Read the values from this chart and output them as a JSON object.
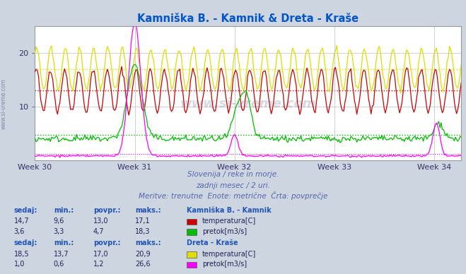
{
  "title": "Kamniška B. - Kamnik & Dreta - Kraše",
  "title_color": "#0055cc",
  "bg_color": "#ccd5e0",
  "plot_bg_color": "#ffffff",
  "grid_color": "#bbbbcc",
  "subtitle_lines": [
    "Slovenija / reke in morje.",
    "zadnji mesec / 2 uri.",
    "Meritve: trenutne  Enote: metrične  Črta: povprečje"
  ],
  "subtitle_color": "#5566aa",
  "week_labels": [
    "Week 30",
    "Week 31",
    "Week 32",
    "Week 33",
    "Week 34"
  ],
  "x_ticks": [
    0,
    84,
    168,
    252,
    336
  ],
  "n_points": 360,
  "ylim": [
    0,
    25
  ],
  "yticks": [
    10,
    20
  ],
  "watermark": "www.si-vreme.com",
  "colors": {
    "kamnik_temp": "#cc0000",
    "kamnik_flow": "#00bb00",
    "dreta_temp": "#dddd00",
    "dreta_flow": "#ff00ff"
  },
  "avg_lines": {
    "kamnik_temp": 13.0,
    "kamnik_flow": 4.7,
    "dreta_temp": 17.0,
    "dreta_flow": 1.2
  },
  "table": {
    "station1": "Kamniška B. - Kamnik",
    "station2": "Dreta - Kraše",
    "headers": [
      "sedaj:",
      "min.:",
      "povpr.:",
      "maks.:"
    ],
    "row1": [
      "14,7",
      "9,6",
      "13,0",
      "17,1"
    ],
    "row2": [
      "3,6",
      "3,3",
      "4,7",
      "18,3"
    ],
    "row3": [
      "18,5",
      "13,7",
      "17,0",
      "20,9"
    ],
    "row4": [
      "1,0",
      "0,6",
      "1,2",
      "26,6"
    ],
    "label1a": "temperatura[C]",
    "label1b": "pretok[m3/s]",
    "label2a": "temperatura[C]",
    "label2b": "pretok[m3/s]"
  }
}
